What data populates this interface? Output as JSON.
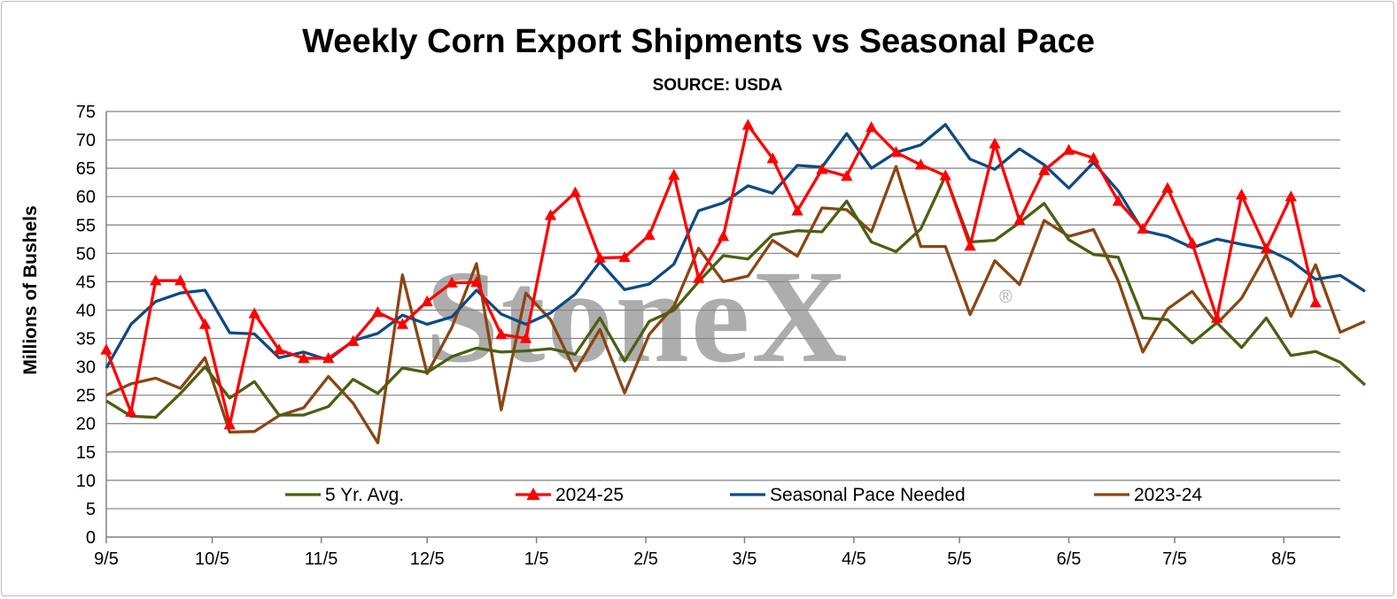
{
  "chart_data": {
    "type": "line",
    "title": "Weekly Corn Export Shipments vs Seasonal Pace",
    "subtitle": "SOURCE: USDA",
    "ylabel": "Millions of Bushels",
    "xlabel": "",
    "ylim": [
      0,
      75
    ],
    "ytick_step": 5,
    "grid": true,
    "legend_position": "bottom-inside",
    "watermark": "StoneX",
    "watermark_mark": "®",
    "x_tick_labels": [
      "9/5",
      "10/5",
      "11/5",
      "12/5",
      "1/5",
      "2/5",
      "3/5",
      "4/5",
      "5/5",
      "6/5",
      "7/5",
      "8/5"
    ],
    "x_tick_weeks": [
      0,
      4.29,
      8.71,
      13,
      17.43,
      21.86,
      25.86,
      30.29,
      34.57,
      39,
      43.29,
      47.71
    ],
    "weeks": 50,
    "series": [
      {
        "name": "5 Yr. Avg.",
        "color": "#4b5f12",
        "marker": "none",
        "values": [
          24,
          21.3,
          21.1,
          25.3,
          30,
          24.5,
          27.4,
          21.5,
          21.5,
          23,
          27.8,
          25.3,
          29.8,
          29,
          31.8,
          33.3,
          32.6,
          32.8,
          33.2,
          32.2,
          38.6,
          31,
          38,
          40,
          45,
          49.6,
          49,
          53.3,
          54,
          53.8,
          59.2,
          52,
          50.3,
          54.3,
          63.6,
          52,
          52.3,
          55.4,
          58.8,
          52.4,
          49.8,
          49.3,
          38.6,
          38.3,
          34.2,
          37.8,
          33.4,
          38.6,
          32,
          32.7,
          30.8,
          26.8
        ]
      },
      {
        "name": "2024-25",
        "color": "#ff0000",
        "marker": "triangle",
        "values": [
          33,
          22,
          45.2,
          45.2,
          37.5,
          19.8,
          39.4,
          33,
          31.5,
          31.5,
          34.5,
          39.6,
          37.5,
          41.5,
          44.8,
          44.9,
          35.7,
          35,
          56.7,
          60.7,
          49.2,
          49.3,
          53.2,
          63.8,
          45.6,
          53,
          72.6,
          66.7,
          57.5,
          64.8,
          63.6,
          72.2,
          67.8,
          65.6,
          63.7,
          51.3,
          69.3,
          55.8,
          64.6,
          68.2,
          66.8,
          59.2,
          54.3,
          61.5,
          51.8,
          38.6,
          60.3,
          50.8,
          60,
          41.3
        ]
      },
      {
        "name": "Seasonal Pace Needed",
        "color": "#0d4a84",
        "marker": "none",
        "values": [
          29.8,
          37.5,
          41.5,
          43,
          43.5,
          36,
          35.8,
          31.6,
          32.6,
          31.2,
          34.6,
          35.9,
          39.1,
          37.5,
          38.8,
          43.5,
          39.3,
          37.5,
          39.5,
          42.8,
          48.5,
          43.6,
          44.6,
          48.1,
          57.5,
          58.9,
          61.9,
          60.6,
          65.5,
          65.2,
          71.1,
          65,
          67.8,
          69.1,
          72.7,
          66.6,
          64.8,
          68.4,
          65.6,
          61.5,
          66,
          61,
          54,
          53,
          51,
          52.5,
          51.6,
          50.8,
          48.7,
          45.4,
          46.1,
          43.3
        ]
      },
      {
        "name": "2023-24",
        "color": "#8b4513",
        "marker": "none",
        "values": [
          25,
          27,
          28,
          26.2,
          31.6,
          18.5,
          18.6,
          21.4,
          22.8,
          28.3,
          23.6,
          16.6,
          46.2,
          28.8,
          36.9,
          48.2,
          22.4,
          43,
          38.3,
          29.3,
          36.6,
          25.4,
          35.7,
          40.7,
          50.9,
          45,
          46,
          52.3,
          49.5,
          58,
          57.7,
          53.8,
          65.3,
          51.2,
          51.2,
          39.2,
          48.7,
          44.5,
          55.8,
          53,
          54.2,
          45.2,
          32.6,
          40.2,
          43.3,
          37.6,
          42.1,
          49.8,
          38.9,
          48,
          36.1,
          38
        ]
      }
    ]
  }
}
